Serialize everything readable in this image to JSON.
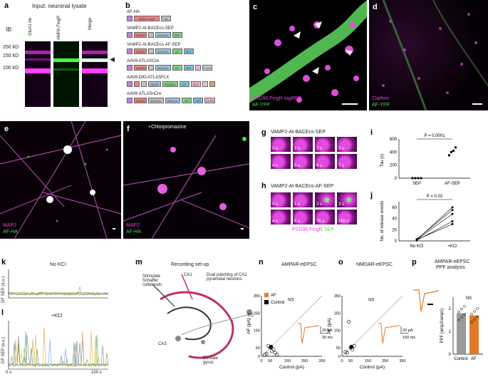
{
  "panels": {
    "a": {
      "label": "a",
      "title": "Input: neuronal lysate",
      "ib": "IB:",
      "lanes": [
        "GluA1 Ab",
        "AMPA.FingR",
        "Merge"
      ],
      "markers": [
        "250 kD",
        "150 kD",
        "100 kD"
      ]
    },
    "b": {
      "label": "b",
      "constructs": [
        {
          "name": "AF-HA",
          "blocks": [
            "",
            "AMPA.FingR",
            "HA"
          ]
        },
        {
          "name": "VAMP2-At-BACEcs-SEP",
          "blocks": [
            "",
            "VAMP2",
            "",
            "BACEcs",
            "SEP"
          ]
        },
        {
          "name": "VAMP2-At-BACEcs-AF-SEP",
          "blocks": [
            "",
            "VAMP2",
            "",
            "BACEcs",
            "AF",
            "SEP"
          ]
        },
        {
          "name": "AAV8-ATLASCre",
          "blocks": [
            "",
            "VAMP2",
            "",
            "BACEcs",
            "AF",
            "SEP",
            "",
            "CCR5"
          ]
        },
        {
          "name": "AAV8-DIO-ATLASFLX",
          "blocks": [
            "",
            "",
            "",
            "VAMP2",
            "BACEcs",
            "AF",
            "SEP",
            "",
            ""
          ]
        },
        {
          "name": "AAV8-ATLASnCre",
          "blocks": [
            "",
            "VAMP2",
            "BACEcs",
            "BACEcs",
            "AF",
            "SEP",
            "CCR5"
          ]
        }
      ]
    },
    "c": {
      "label": "c",
      "legend1": "PSD95.FingR-tagRFP",
      "legend2": "AF-YFP"
    },
    "d": {
      "label": "d",
      "legend1": "Clathrin",
      "legend2": "AF-YFP"
    },
    "e": {
      "label": "e",
      "legend1": "MAP2",
      "legend2": "AF-HA"
    },
    "f": {
      "label": "f",
      "title": "+Chlorpromazine",
      "legend1": "MAP2",
      "legend2": "AF-HA"
    },
    "g": {
      "label": "g",
      "title": "VAMP2-At-BACEcs-SEP",
      "tiles": [
        "0 s",
        "1 s",
        "2 s",
        "3 s",
        "4 s",
        "5 s",
        "6 s",
        "7 s"
      ]
    },
    "h": {
      "label": "h",
      "title": "VAMP2-At-BACEcs-AF-SEP",
      "tiles": [
        "0 s",
        "1 s",
        "2 s",
        "3 s",
        "4 s",
        "5 s",
        "75 s",
        "150 s"
      ],
      "legend1": "PSD95.FingR",
      "legend2": "SEP"
    },
    "i": {
      "label": "i",
      "ylabel": "Tau (s)",
      "pvalue": "P = 0.0001",
      "ticks": [
        "0",
        "200",
        "400",
        "600"
      ],
      "categories": [
        "SEP",
        "AF-SEP"
      ]
    },
    "j": {
      "label": "j",
      "ylabel": "No. of release events",
      "pvalue": "P = 0.02",
      "ticks": [
        "0",
        "20",
        "40",
        "60"
      ],
      "categories": [
        "No KCl",
        "+KCl"
      ]
    },
    "k": {
      "label": "k",
      "title": "No KCl",
      "ylabel": "DF SEP (a.u.)"
    },
    "l": {
      "label": "l",
      "title": "+KCl",
      "ylabel": "DF SEP (a.u.)",
      "xticks": [
        "0 s",
        "100 s"
      ]
    },
    "m": {
      "label": "m",
      "title": "Recording set-up",
      "annotations": [
        "Stimulate Schaffer collaterals",
        "CA1",
        "Dual patching of CA1 pyramidal neurons",
        "CA3",
        "Dentate gyrus",
        "EC"
      ]
    },
    "n": {
      "label": "n",
      "title": "AMPAR-eEPSC",
      "ns": "NS",
      "xlabel": "Control (pA)",
      "ylabel": "AF (pA)",
      "ticks": [
        "0",
        "50",
        "150",
        "250",
        "350"
      ],
      "legend": [
        "AF",
        "Control"
      ],
      "scale_y": "20 pA",
      "scale_x": "20 ms"
    },
    "o": {
      "label": "o",
      "title": "NMDAR-eEPSC",
      "ns": "NS",
      "xlabel": "Control (pA)",
      "ylabel": "AF (pA)",
      "ticks": [
        "0",
        "50",
        "150",
        "250",
        "350"
      ],
      "scale_y": "20 pA",
      "scale_x": "100 ms"
    },
    "p": {
      "label": "p",
      "title": "AMPAR-eEPSC",
      "title2": "PPF analysis",
      "ns": "NS",
      "ylabel": "PPF (amp2/amp1)",
      "ticks": [
        "0",
        "1",
        "2"
      ],
      "categories": [
        "Control",
        "AF"
      ]
    }
  },
  "colors": {
    "magenta": "#e040e0",
    "green": "#3ee03e",
    "orange": "#e07a2a",
    "gray": "#9a9a9a"
  },
  "chart_data": [
    {
      "panel": "i",
      "type": "scatter",
      "categories": [
        "SEP",
        "AF-SEP"
      ],
      "series": [
        {
          "values_SEP": [
            0,
            0,
            0,
            0
          ],
          "values_AF-SEP": [
            350,
            400,
            420,
            470
          ]
        }
      ],
      "ylim": [
        0,
        600
      ]
    },
    {
      "panel": "j",
      "type": "line",
      "categories": [
        "No KCl",
        "+KCl"
      ],
      "pairs": [
        [
          2,
          60
        ],
        [
          3,
          55
        ],
        [
          2,
          48
        ],
        [
          1,
          35
        ],
        [
          2,
          30
        ]
      ],
      "ylim": [
        0,
        70
      ]
    },
    {
      "panel": "n",
      "type": "scatter",
      "xlim": [
        0,
        350
      ],
      "ylim": [
        0,
        350
      ],
      "points": [
        [
          40,
          60
        ],
        [
          60,
          30
        ],
        [
          70,
          40
        ],
        [
          30,
          15
        ],
        [
          80,
          20
        ],
        [
          55,
          55
        ],
        [
          90,
          10
        ],
        [
          20,
          10
        ],
        [
          50,
          50
        ]
      ],
      "mean": [
        55,
        55
      ]
    },
    {
      "panel": "o",
      "type": "scatter",
      "xlim": [
        0,
        350
      ],
      "ylim": [
        0,
        350
      ],
      "points": [
        [
          40,
          200
        ],
        [
          60,
          40
        ],
        [
          30,
          20
        ],
        [
          70,
          60
        ],
        [
          50,
          50
        ],
        [
          20,
          25
        ]
      ],
      "mean": [
        55,
        55
      ]
    },
    {
      "panel": "p",
      "type": "bar",
      "categories": [
        "Control",
        "AF"
      ],
      "values": [
        1.8,
        1.7
      ],
      "ylim": [
        0,
        2.5
      ]
    }
  ]
}
